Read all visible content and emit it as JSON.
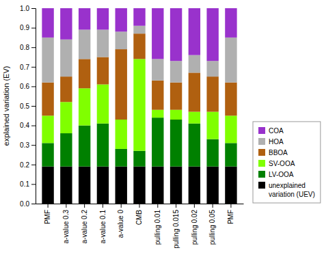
{
  "chart_data": {
    "type": "bar",
    "stacked": true,
    "grid": false,
    "categories": [
      "PMF",
      "a-value 0.3",
      "a-value 0.2",
      "a-value 0.1",
      "a-value 0",
      "CMB",
      "pulling 0.01",
      "pulling 0.015",
      "pulling 0.02",
      "pulling 0.05",
      "PMF"
    ],
    "series": [
      {
        "name": "unexplained\nvariation (UEV)",
        "color": "#000000",
        "values": [
          0.19,
          0.19,
          0.19,
          0.19,
          0.19,
          0.19,
          0.19,
          0.19,
          0.19,
          0.19,
          0.19
        ]
      },
      {
        "name": "LV-OOA",
        "color": "#008000",
        "values": [
          0.12,
          0.17,
          0.21,
          0.22,
          0.09,
          0.08,
          0.25,
          0.24,
          0.22,
          0.14,
          0.12
        ]
      },
      {
        "name": "SV-OOA",
        "color": "#80ff00",
        "values": [
          0.14,
          0.16,
          0.19,
          0.2,
          0.15,
          0.47,
          0.04,
          0.05,
          0.06,
          0.14,
          0.14
        ]
      },
      {
        "name": "BBOA",
        "color": "#b06010",
        "values": [
          0.17,
          0.13,
          0.15,
          0.14,
          0.36,
          0.13,
          0.15,
          0.14,
          0.2,
          0.18,
          0.17
        ]
      },
      {
        "name": "HOA",
        "color": "#b0b0b0",
        "values": [
          0.23,
          0.19,
          0.15,
          0.14,
          0.09,
          0.04,
          0.11,
          0.11,
          0.09,
          0.08,
          0.23
        ]
      },
      {
        "name": "COA",
        "color": "#9932cc",
        "values": [
          0.15,
          0.16,
          0.11,
          0.11,
          0.12,
          0.09,
          0.26,
          0.27,
          0.24,
          0.27,
          0.15
        ]
      }
    ],
    "y_label": "explained variation (EV)",
    "ylim": [
      0.0,
      1.0
    ],
    "yticks": [
      {
        "value": 0,
        "label": "0.0"
      },
      0.1,
      0.2,
      0.3,
      0.4,
      0.5,
      0.6,
      0.7,
      0.8,
      0.9,
      {
        "value": 1,
        "label": "1.0"
      }
    ]
  }
}
